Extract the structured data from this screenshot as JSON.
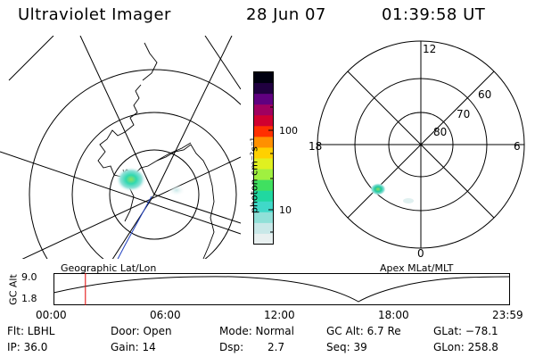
{
  "header": {
    "title": "Ultraviolet Imager",
    "date": "28 Jun 07",
    "time": "01:39:58 UT"
  },
  "geo_panel": {
    "label": "Geographic Lat/Lon"
  },
  "mag_panel": {
    "label": "Apex MLat/MLT",
    "hour_labels": {
      "top": "12",
      "left": "18",
      "right": "6",
      "bottom": "0"
    },
    "lat_labels": [
      "60",
      "70",
      "80"
    ]
  },
  "colorbar": {
    "unit": "photon cm⁻²s⁻¹",
    "tick_labels": [
      "100",
      "10"
    ],
    "colors": [
      "#e8f0f0",
      "#c8e8e8",
      "#90e0d8",
      "#40d8c8",
      "#20d8a0",
      "#40e060",
      "#a0f040",
      "#e0f020",
      "#ffd000",
      "#ff9000",
      "#ff3000",
      "#d00030",
      "#a00060",
      "#600080",
      "#200040",
      "#000010"
    ]
  },
  "timeline": {
    "ylabel": "GC Alt",
    "y_ticks": [
      "9.0",
      "1.8"
    ],
    "x_ticks": [
      "00:00",
      "06:00",
      "12:00",
      "18:00",
      "23:59"
    ],
    "current_time_fraction": 0.07
  },
  "info": {
    "filter": "Flt: LBHL",
    "ip": "IP: 36.0",
    "door": "Door: Open",
    "gain": "Gain: 14",
    "mode": "Mode: Normal",
    "dsp_label": "Dsp:",
    "dsp_value": "2.7",
    "gc_alt": "GC Alt: 6.7 Re",
    "seq": "Seq: 39",
    "glat": "GLat: −78.1",
    "glon": "GLon: 258.8"
  }
}
